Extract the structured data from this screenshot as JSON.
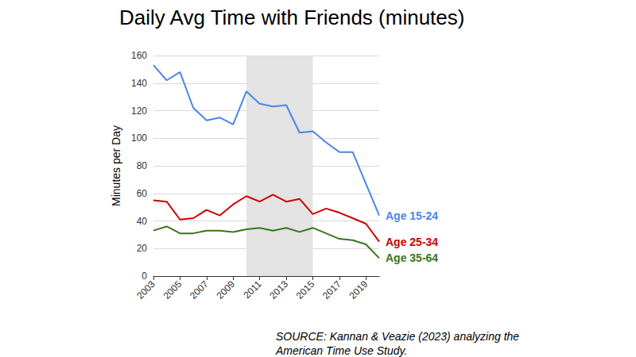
{
  "chart_data": {
    "type": "line",
    "title": "Daily Avg Time with Friends (minutes)",
    "y_label": "Minutes per Day",
    "source": "SOURCE: Kannan & Veazie (2023) analyzing the American Time Use Study.",
    "x": [
      2003,
      2004,
      2005,
      2006,
      2007,
      2008,
      2009,
      2010,
      2011,
      2012,
      2013,
      2014,
      2015,
      2016,
      2017,
      2018,
      2019,
      2020
    ],
    "xlim": [
      2003,
      2020
    ],
    "xticks": [
      2003,
      2005,
      2007,
      2009,
      2011,
      2013,
      2015,
      2017,
      2019
    ],
    "ylim": [
      0,
      160
    ],
    "yticks": [
      0,
      20,
      40,
      60,
      80,
      100,
      120,
      140,
      160
    ],
    "grid": true,
    "shaded_range": [
      2010,
      2015
    ],
    "series": [
      {
        "name": "Age 15-24",
        "color": "#4a86e8",
        "values": [
          153,
          142,
          148,
          122,
          113,
          115,
          110,
          134,
          125,
          123,
          124,
          104,
          105,
          97,
          90,
          90,
          67,
          44
        ]
      },
      {
        "name": "Age 25-34",
        "color": "#cc0000",
        "values": [
          55,
          54,
          41,
          42,
          48,
          44,
          52,
          58,
          54,
          59,
          54,
          56,
          45,
          49,
          46,
          42,
          38,
          25
        ]
      },
      {
        "name": "Age 35-64",
        "color": "#38761d",
        "values": [
          33,
          36,
          31,
          31,
          33,
          33,
          32,
          34,
          35,
          33,
          35,
          32,
          35,
          31,
          27,
          26,
          23,
          13
        ]
      }
    ]
  }
}
